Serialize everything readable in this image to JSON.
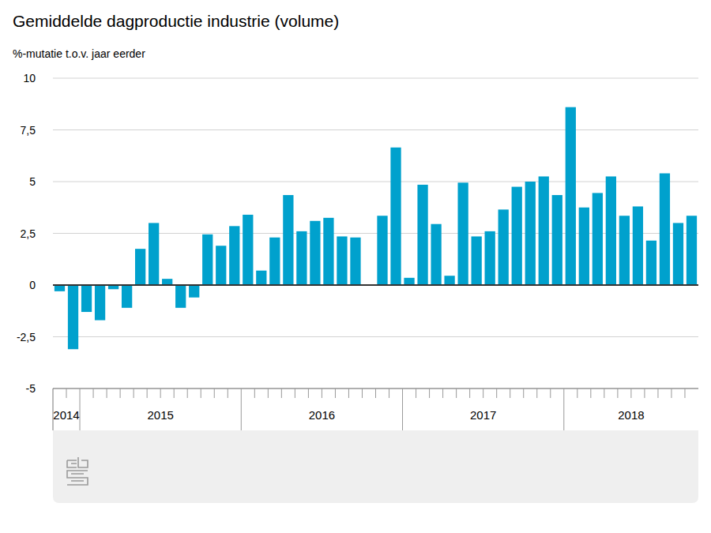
{
  "chart_data": {
    "type": "bar",
    "title": "Gemiddelde dagproductie industrie (volume)",
    "subtitle": "%-mutatie t.o.v. jaar eerder",
    "categories": [
      "2014",
      "2014",
      "2015",
      "2015",
      "2015",
      "2015",
      "2015",
      "2015",
      "2015",
      "2015",
      "2015",
      "2015",
      "2015",
      "2015",
      "2016",
      "2016",
      "2016",
      "2016",
      "2016",
      "2016",
      "2016",
      "2016",
      "2016",
      "2016",
      "2016",
      "2016",
      "2017",
      "2017",
      "2017",
      "2017",
      "2017",
      "2017",
      "2017",
      "2017",
      "2017",
      "2017",
      "2017",
      "2017",
      "2018",
      "2018",
      "2018",
      "2018",
      "2018",
      "2018",
      "2018",
      "2018",
      "2018",
      "2018"
    ],
    "values": [
      -0.3,
      -3.1,
      -1.3,
      -1.7,
      -0.2,
      -1.1,
      1.75,
      3.0,
      0.3,
      -1.1,
      -0.6,
      2.45,
      1.9,
      2.85,
      3.4,
      0.7,
      2.3,
      4.35,
      2.6,
      3.1,
      3.25,
      2.35,
      2.3,
      0,
      3.35,
      6.65,
      0.35,
      4.85,
      2.95,
      0.45,
      4.95,
      2.35,
      2.6,
      3.65,
      4.75,
      5.0,
      5.25,
      4.35,
      8.6,
      3.75,
      4.45,
      5.25,
      3.35,
      3.8,
      2.15,
      5.4,
      3.0,
      3.35
    ],
    "color": "#00a1cd",
    "ylim": [
      -5,
      10
    ],
    "yticks": [
      -5,
      {
        "value": -2.5,
        "label": "-2,5"
      },
      0,
      {
        "value": 2.5,
        "label": "2,5"
      },
      5,
      {
        "value": 7.5,
        "label": "7,5"
      },
      10
    ],
    "grid": true
  }
}
